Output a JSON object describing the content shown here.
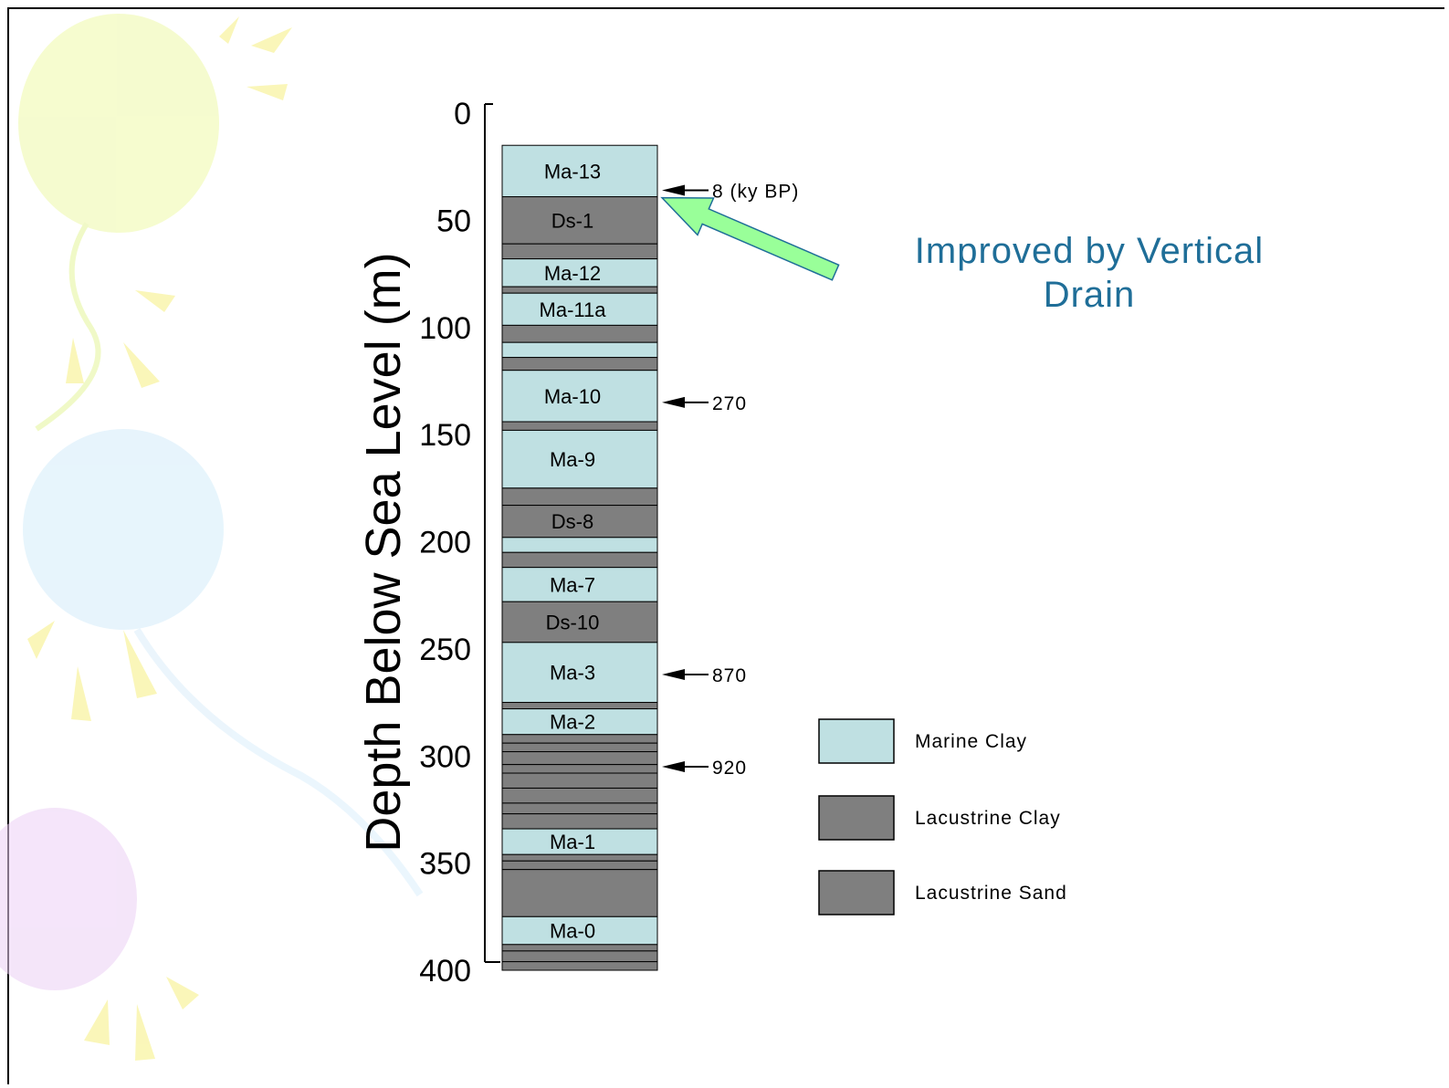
{
  "colors": {
    "marine_clay": "#bfe0e2",
    "lacustrine_clay": "#7f7f7f",
    "lacustrine_sand": "#7f7f7f",
    "callout_text": "#1f6e98",
    "callout_arrow": "#99ff99"
  },
  "chart_data": {
    "type": "stratigraphic-column",
    "ylabel": "Depth Below Sea Level (m)",
    "ylim": [
      0,
      400
    ],
    "y_ticks": [
      0,
      50,
      100,
      150,
      200,
      250,
      300,
      350,
      400
    ],
    "column_top_depth": 15,
    "layers": [
      {
        "top": 15,
        "bottom": 39,
        "type": "marine_clay",
        "label": "Ma-13"
      },
      {
        "top": 39,
        "bottom": 61,
        "type": "lacustrine_clay",
        "label": "Ds-1"
      },
      {
        "top": 61,
        "bottom": 68,
        "type": "lacustrine_sand",
        "label": ""
      },
      {
        "top": 68,
        "bottom": 81,
        "type": "marine_clay",
        "label": "Ma-12"
      },
      {
        "top": 81,
        "bottom": 84,
        "type": "lacustrine_clay",
        "label": ""
      },
      {
        "top": 84,
        "bottom": 99,
        "type": "marine_clay",
        "label": "Ma-11a"
      },
      {
        "top": 99,
        "bottom": 107,
        "type": "lacustrine_clay",
        "label": ""
      },
      {
        "top": 107,
        "bottom": 114,
        "type": "marine_clay",
        "label": ""
      },
      {
        "top": 114,
        "bottom": 120,
        "type": "lacustrine_clay",
        "label": ""
      },
      {
        "top": 120,
        "bottom": 144,
        "type": "marine_clay",
        "label": "Ma-10"
      },
      {
        "top": 144,
        "bottom": 148,
        "type": "lacustrine_clay",
        "label": ""
      },
      {
        "top": 148,
        "bottom": 175,
        "type": "marine_clay",
        "label": "Ma-9"
      },
      {
        "top": 175,
        "bottom": 183,
        "type": "lacustrine_clay",
        "label": ""
      },
      {
        "top": 183,
        "bottom": 198,
        "type": "lacustrine_clay",
        "label": "Ds-8"
      },
      {
        "top": 198,
        "bottom": 205,
        "type": "marine_clay",
        "label": ""
      },
      {
        "top": 205,
        "bottom": 212,
        "type": "lacustrine_clay",
        "label": ""
      },
      {
        "top": 212,
        "bottom": 228,
        "type": "marine_clay",
        "label": "Ma-7"
      },
      {
        "top": 228,
        "bottom": 247,
        "type": "lacustrine_clay",
        "label": "Ds-10"
      },
      {
        "top": 247,
        "bottom": 275,
        "type": "marine_clay",
        "label": "Ma-3"
      },
      {
        "top": 275,
        "bottom": 278,
        "type": "lacustrine_clay",
        "label": ""
      },
      {
        "top": 278,
        "bottom": 290,
        "type": "marine_clay",
        "label": "Ma-2"
      },
      {
        "top": 290,
        "bottom": 294,
        "type": "lacustrine_sand",
        "label": ""
      },
      {
        "top": 294,
        "bottom": 298,
        "type": "lacustrine_sand",
        "label": ""
      },
      {
        "top": 298,
        "bottom": 304,
        "type": "lacustrine_sand",
        "label": ""
      },
      {
        "top": 304,
        "bottom": 308,
        "type": "lacustrine_sand",
        "label": ""
      },
      {
        "top": 308,
        "bottom": 315,
        "type": "lacustrine_clay",
        "label": ""
      },
      {
        "top": 315,
        "bottom": 322,
        "type": "lacustrine_sand",
        "label": ""
      },
      {
        "top": 322,
        "bottom": 327,
        "type": "lacustrine_clay",
        "label": ""
      },
      {
        "top": 327,
        "bottom": 334,
        "type": "lacustrine_sand",
        "label": ""
      },
      {
        "top": 334,
        "bottom": 346,
        "type": "marine_clay",
        "label": "Ma-1"
      },
      {
        "top": 346,
        "bottom": 349,
        "type": "lacustrine_sand",
        "label": ""
      },
      {
        "top": 349,
        "bottom": 353,
        "type": "lacustrine_sand",
        "label": ""
      },
      {
        "top": 353,
        "bottom": 375,
        "type": "lacustrine_clay",
        "label": ""
      },
      {
        "top": 375,
        "bottom": 388,
        "type": "marine_clay",
        "label": "Ma-0"
      },
      {
        "top": 388,
        "bottom": 391,
        "type": "lacustrine_sand",
        "label": ""
      },
      {
        "top": 391,
        "bottom": 396,
        "type": "lacustrine_sand",
        "label": ""
      },
      {
        "top": 396,
        "bottom": 400,
        "type": "lacustrine_sand",
        "label": ""
      }
    ],
    "age_markers": [
      {
        "depth": 36,
        "label": "8 (ky BP)"
      },
      {
        "depth": 135,
        "label": "270"
      },
      {
        "depth": 262,
        "label": "870"
      },
      {
        "depth": 305,
        "label": "920"
      }
    ],
    "legend": [
      {
        "type": "marine_clay",
        "label": "Marine Clay"
      },
      {
        "type": "lacustrine_clay",
        "label": "Lacustrine Clay"
      },
      {
        "type": "lacustrine_sand",
        "label": "Lacustrine Sand"
      }
    ],
    "callout": {
      "lines": [
        "Improved by Vertical",
        "Drain"
      ],
      "depth": 39
    }
  }
}
